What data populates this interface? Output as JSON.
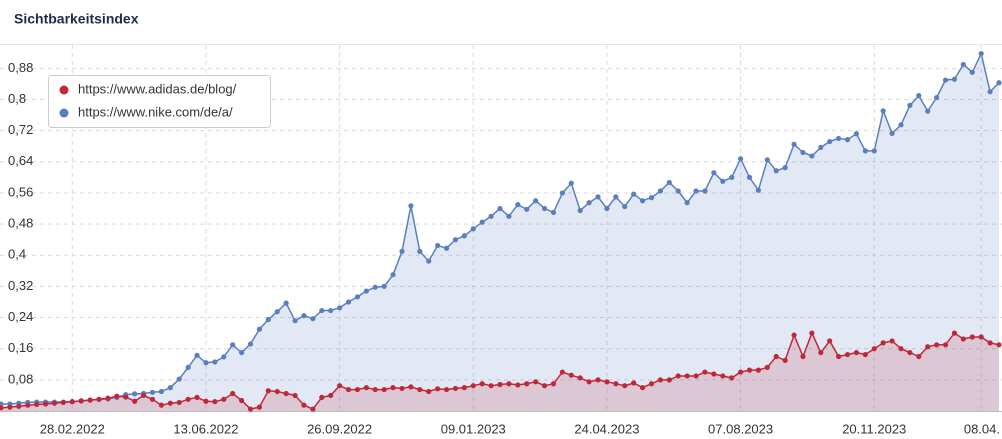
{
  "chart_data": {
    "type": "line",
    "title": "Sichtbarkeitsindex",
    "categories": [
      null,
      null,
      null,
      null,
      null,
      null,
      null,
      null,
      "28.02.2022",
      null,
      null,
      null,
      null,
      null,
      null,
      null,
      null,
      null,
      null,
      null,
      null,
      null,
      null,
      "13.06.2022",
      null,
      null,
      null,
      null,
      null,
      null,
      null,
      null,
      null,
      null,
      null,
      null,
      null,
      null,
      "26.09.2022",
      null,
      null,
      null,
      null,
      null,
      null,
      null,
      null,
      null,
      null,
      null,
      null,
      null,
      null,
      "09.01.2023",
      null,
      null,
      null,
      null,
      null,
      null,
      null,
      null,
      null,
      null,
      null,
      null,
      null,
      null,
      "24.04.2023",
      null,
      null,
      null,
      null,
      null,
      null,
      null,
      null,
      null,
      null,
      null,
      null,
      null,
      null,
      "07.08.2023",
      null,
      null,
      null,
      null,
      null,
      null,
      null,
      null,
      null,
      null,
      null,
      null,
      null,
      null,
      "20.11.2023",
      null,
      null,
      null,
      null,
      null,
      null,
      null,
      null,
      null,
      null,
      null,
      "08.04.",
      null,
      null
    ],
    "series": [
      {
        "name": "https://www.adidas.de/blog/",
        "color": "#c0283a",
        "values": [
          0.008,
          0.01,
          0.012,
          0.015,
          0.017,
          0.018,
          0.02,
          0.022,
          0.024,
          0.026,
          0.028,
          0.03,
          0.033,
          0.038,
          0.036,
          0.025,
          0.04,
          0.03,
          0.015,
          0.02,
          0.022,
          0.03,
          0.035,
          0.025,
          0.024,
          0.03,
          0.045,
          0.027,
          0.005,
          0.01,
          0.052,
          0.05,
          0.045,
          0.04,
          0.015,
          0.005,
          0.035,
          0.04,
          0.065,
          0.055,
          0.055,
          0.06,
          0.055,
          0.055,
          0.06,
          0.058,
          0.062,
          0.055,
          0.05,
          0.057,
          0.055,
          0.058,
          0.06,
          0.065,
          0.07,
          0.065,
          0.068,
          0.07,
          0.067,
          0.07,
          0.075,
          0.065,
          0.07,
          0.1,
          0.092,
          0.085,
          0.075,
          0.08,
          0.075,
          0.07,
          0.065,
          0.072,
          0.06,
          0.07,
          0.08,
          0.08,
          0.09,
          0.09,
          0.09,
          0.1,
          0.095,
          0.09,
          0.085,
          0.1,
          0.105,
          0.105,
          0.112,
          0.14,
          0.13,
          0.195,
          0.14,
          0.2,
          0.15,
          0.18,
          0.14,
          0.145,
          0.15,
          0.145,
          0.16,
          0.175,
          0.18,
          0.16,
          0.15,
          0.14,
          0.165,
          0.17,
          0.17,
          0.2,
          0.185,
          0.19,
          0.19,
          0.175,
          0.17
        ]
      },
      {
        "name": "https://www.nike.com/de/a/",
        "color": "#5a7fc0",
        "values": [
          0.018,
          0.018,
          0.02,
          0.022,
          0.023,
          0.023,
          0.023,
          0.023,
          0.024,
          0.026,
          0.028,
          0.03,
          0.031,
          0.035,
          0.042,
          0.044,
          0.045,
          0.048,
          0.05,
          0.06,
          0.082,
          0.112,
          0.143,
          0.124,
          0.126,
          0.139,
          0.17,
          0.15,
          0.172,
          0.21,
          0.235,
          0.255,
          0.277,
          0.232,
          0.245,
          0.237,
          0.258,
          0.258,
          0.265,
          0.28,
          0.293,
          0.308,
          0.318,
          0.32,
          0.35,
          0.41,
          0.527,
          0.41,
          0.385,
          0.425,
          0.418,
          0.44,
          0.45,
          0.468,
          0.485,
          0.5,
          0.52,
          0.5,
          0.53,
          0.518,
          0.54,
          0.52,
          0.51,
          0.56,
          0.585,
          0.515,
          0.535,
          0.55,
          0.52,
          0.55,
          0.525,
          0.557,
          0.54,
          0.548,
          0.565,
          0.587,
          0.565,
          0.535,
          0.565,
          0.565,
          0.612,
          0.59,
          0.6,
          0.648,
          0.6,
          0.567,
          0.645,
          0.617,
          0.625,
          0.685,
          0.664,
          0.655,
          0.677,
          0.692,
          0.7,
          0.697,
          0.712,
          0.668,
          0.668,
          0.771,
          0.713,
          0.735,
          0.785,
          0.81,
          0.77,
          0.805,
          0.85,
          0.852,
          0.89,
          0.87,
          0.918,
          0.82,
          0.843
        ]
      }
    ],
    "ylim": [
      0,
      0.94
    ],
    "yticks": [
      {
        "value": 0.08,
        "label": "0,08"
      },
      {
        "value": 0.16,
        "label": "0,16"
      },
      {
        "value": 0.24,
        "label": "0,24"
      },
      {
        "value": 0.32,
        "label": "0,32"
      },
      {
        "value": 0.4,
        "label": "0,4"
      },
      {
        "value": 0.48,
        "label": "0,48"
      },
      {
        "value": 0.56,
        "label": "0,56"
      },
      {
        "value": 0.64,
        "label": "0,64"
      },
      {
        "value": 0.72,
        "label": "0,72"
      },
      {
        "value": 0.8,
        "label": "0,8"
      },
      {
        "value": 0.88,
        "label": "0,88"
      }
    ],
    "grid": true,
    "legend": "top-left"
  }
}
